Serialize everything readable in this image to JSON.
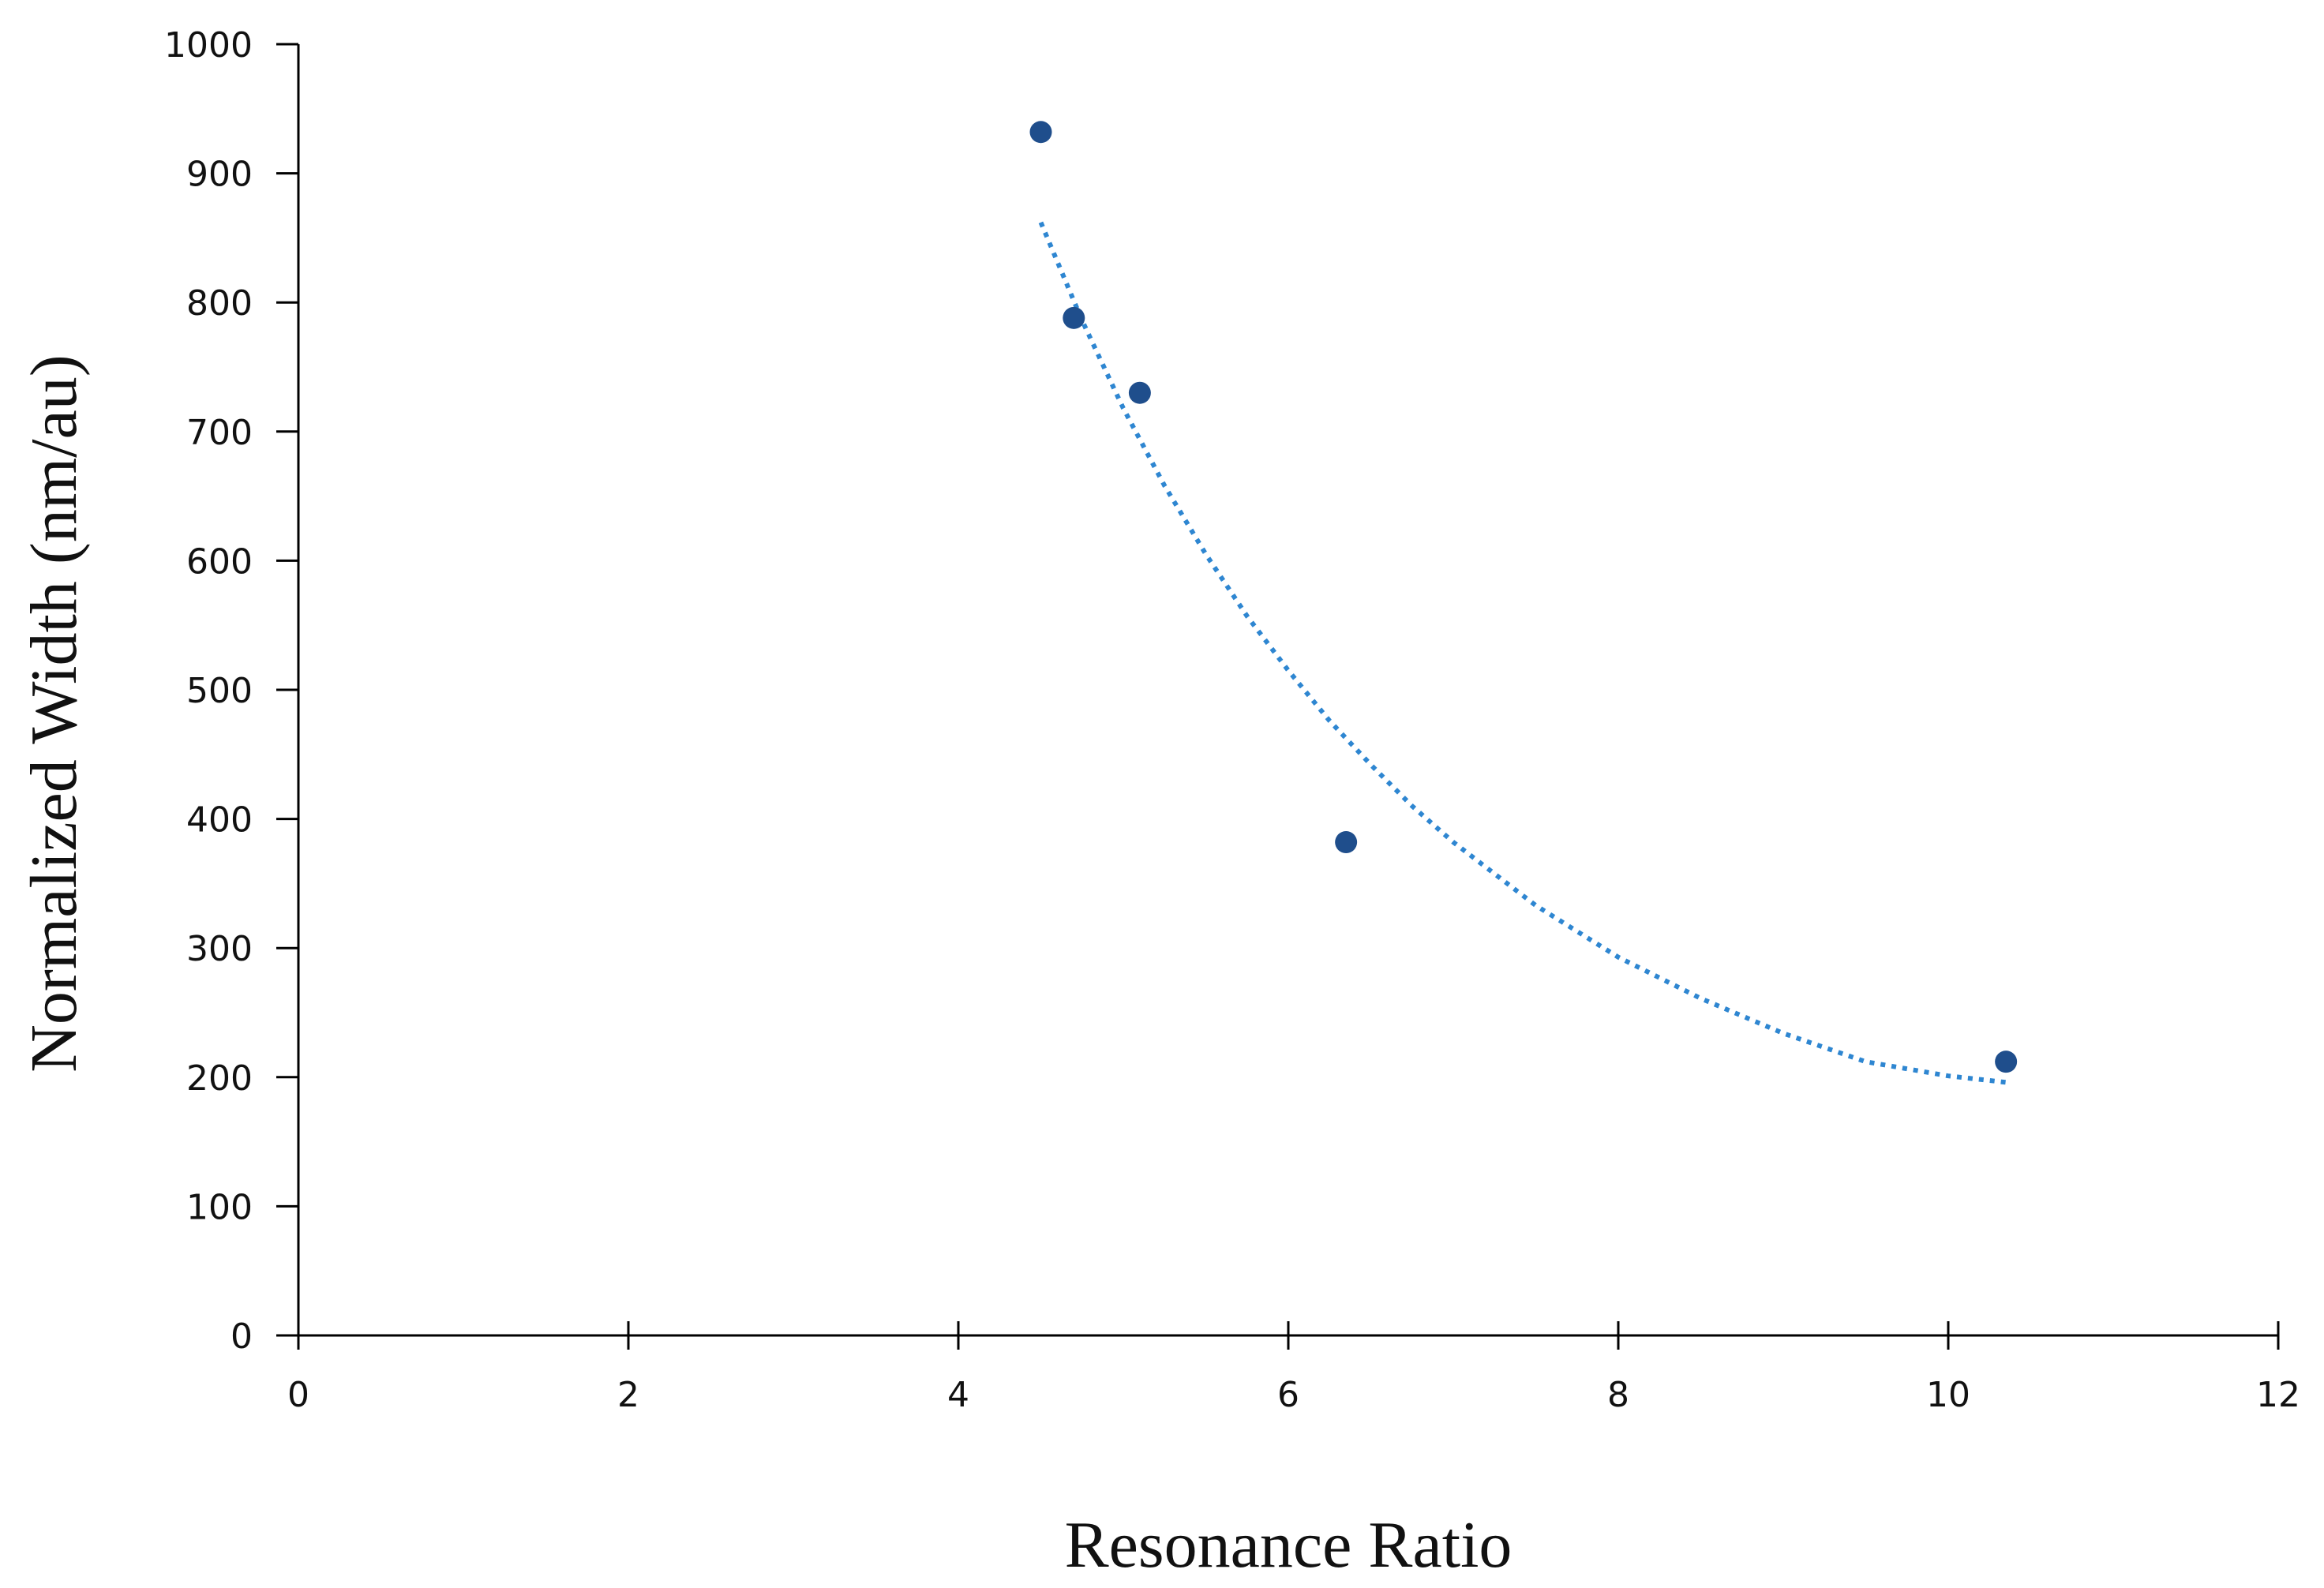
{
  "chart_data": {
    "type": "scatter",
    "title": "",
    "xlabel": "Resonance Ratio",
    "ylabel": "Normalized Width (nm/au)",
    "xlim": [
      0,
      12
    ],
    "ylim": [
      0,
      1000
    ],
    "x_ticks": [
      0,
      2,
      4,
      6,
      8,
      10,
      12
    ],
    "y_ticks": [
      0,
      100,
      200,
      300,
      400,
      500,
      600,
      700,
      800,
      900,
      1000
    ],
    "x_tick_labels": [
      "0",
      "2",
      "4",
      "6",
      "8",
      "10",
      "12"
    ],
    "y_tick_labels": [
      "0",
      "100",
      "200",
      "300",
      "400",
      "500",
      "600",
      "700",
      "800",
      "900",
      "1000"
    ],
    "grid": false,
    "legend": "none",
    "series": [
      {
        "x": [
          4.5,
          4.7,
          5.1,
          6.35,
          10.35
        ],
        "y": [
          932,
          788,
          730,
          382,
          212
        ],
        "color": "#1f4e8c",
        "marker": "circle"
      }
    ],
    "trendline": {
      "style": "dotted",
      "color": "#2e86d1",
      "x": [
        4.5,
        4.75,
        5.0,
        5.25,
        5.5,
        5.75,
        6.0,
        6.25,
        6.5,
        6.75,
        7.0,
        7.5,
        8.0,
        8.5,
        9.0,
        9.5,
        10.0,
        10.35
      ],
      "y": [
        862,
        786,
        718,
        658,
        605,
        557,
        515,
        476,
        442,
        410,
        382,
        333,
        293,
        261,
        234,
        212,
        201,
        196
      ]
    }
  }
}
